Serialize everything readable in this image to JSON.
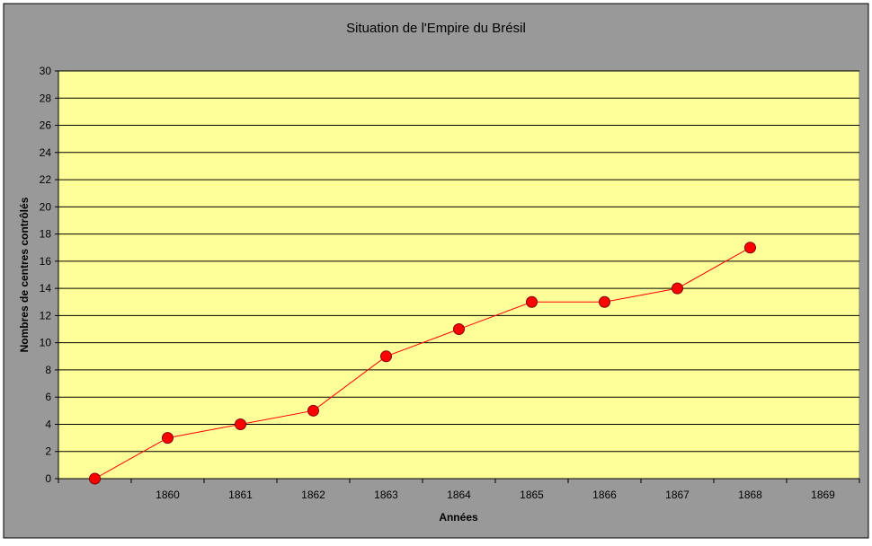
{
  "chart_data": {
    "type": "line",
    "title": "Situation de l'Empire du Brésil",
    "xlabel": "Années",
    "ylabel": "Nombres de centres contrôlés",
    "categories": [
      "",
      "1860",
      "1861",
      "1862",
      "1863",
      "1864",
      "1865",
      "1866",
      "1867",
      "1868",
      "1869"
    ],
    "series": [
      {
        "values": [
          0,
          3,
          4,
          5,
          9,
          11,
          13,
          13,
          14,
          17,
          null
        ]
      }
    ],
    "ylim": [
      0,
      30
    ],
    "yticks": [
      "0",
      "2",
      "4",
      "6",
      "8",
      "10",
      "12",
      "14",
      "16",
      "18",
      "20",
      "22",
      "24",
      "26",
      "28",
      "30"
    ],
    "grid": true,
    "legend": "none",
    "colors": {
      "outer_background": "#999999",
      "plot_background": "#ffff99",
      "line": "#ff0000",
      "marker_fill": "#ff0000",
      "marker_stroke": "#800000",
      "gridline": "#000000",
      "text": "#000000"
    }
  }
}
